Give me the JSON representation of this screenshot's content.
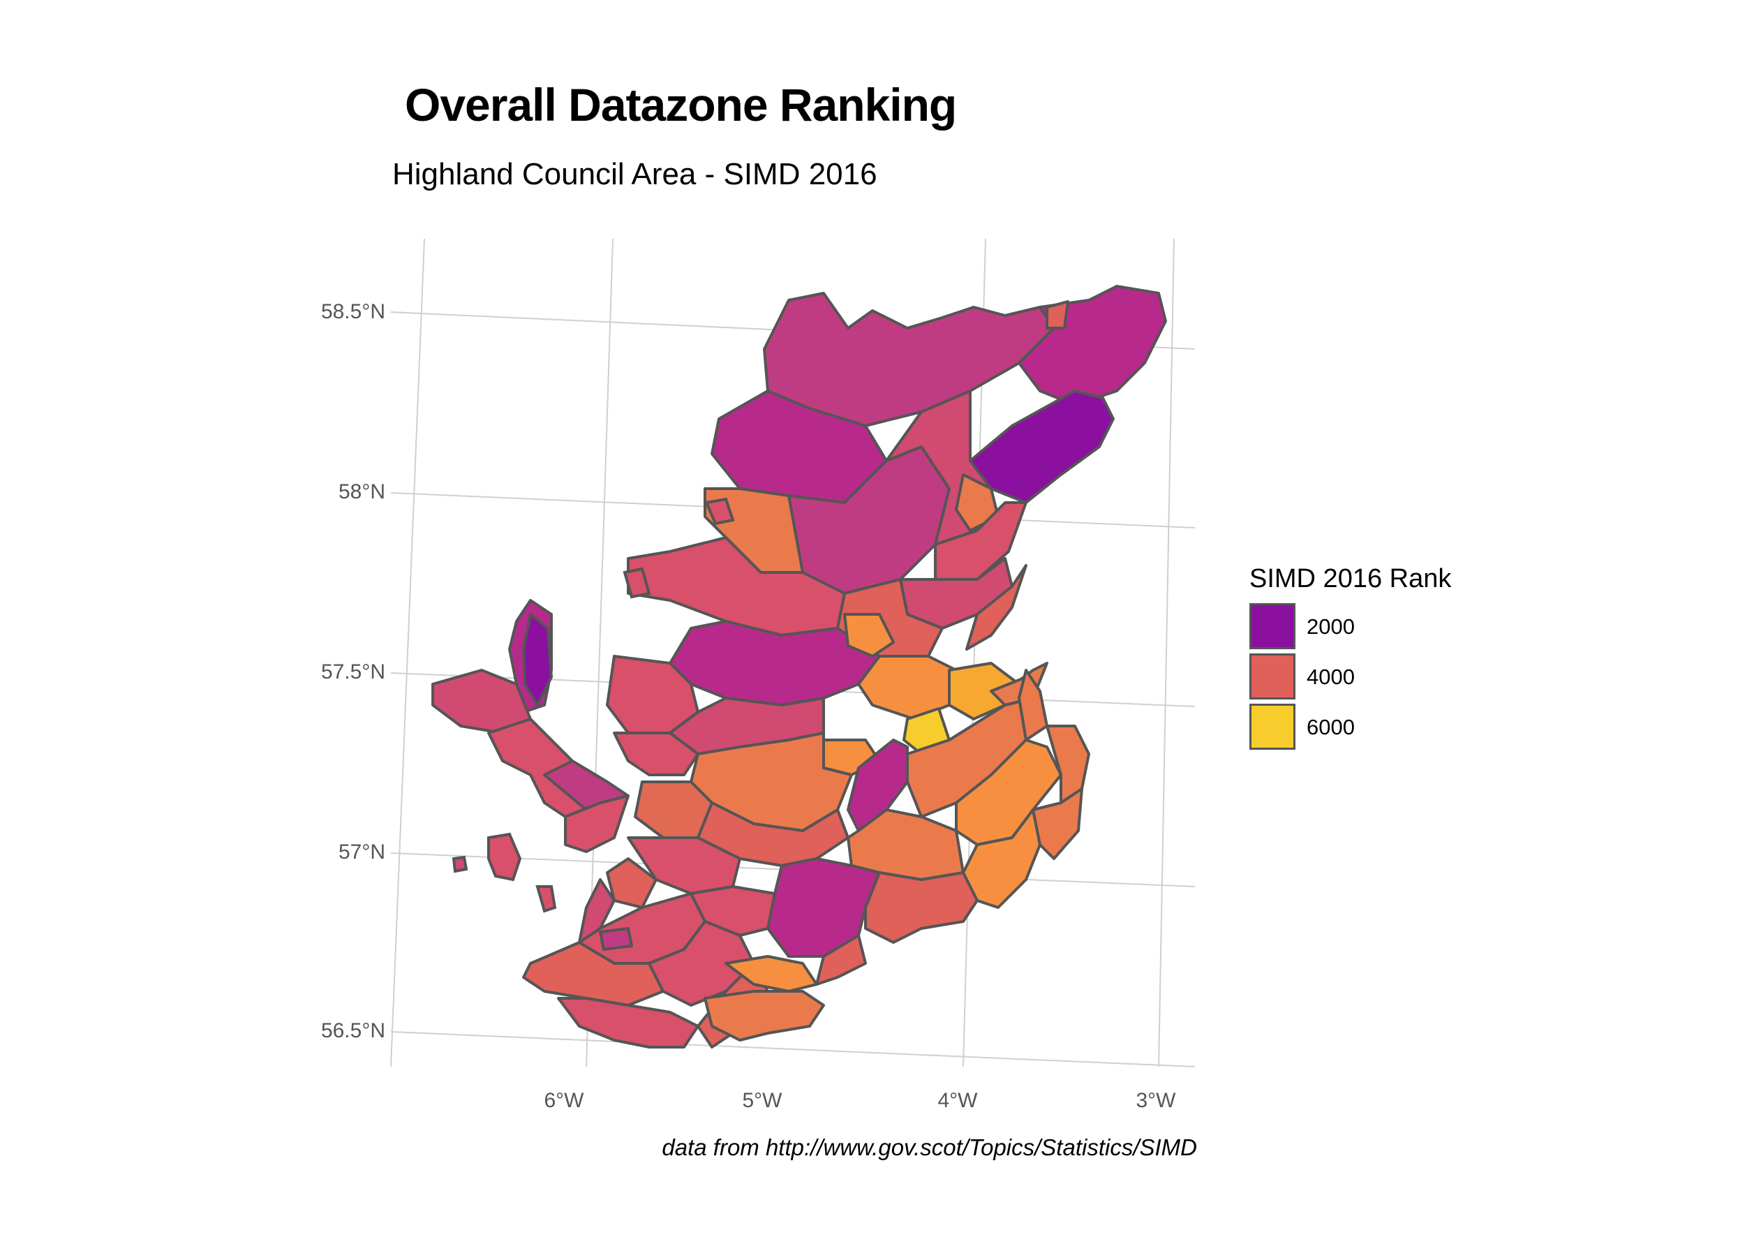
{
  "title": "Overall Datazone Ranking",
  "subtitle": "Highland Council Area - SIMD 2016",
  "caption": "data from http://www.gov.scot/Topics/Statistics/SIMD",
  "axes": {
    "latitude_labels": [
      "58.5°N",
      "58°N",
      "57.5°N",
      "57°N",
      "56.5°N"
    ],
    "longitude_labels": [
      "6°W",
      "5°W",
      "4°W",
      "3°W"
    ]
  },
  "legend": {
    "title": "SIMD 2016 Rank",
    "items": [
      {
        "label": "2000",
        "color": "#8b10a0"
      },
      {
        "label": "4000",
        "color": "#e0605a"
      },
      {
        "label": "6000",
        "color": "#f6cd2c"
      }
    ]
  },
  "colors": {
    "outline": "#555555",
    "graticule": "#c8c8c8",
    "rank_low": "#8b10a0",
    "rank_mid_low": "#b72a8c",
    "rank_mid": "#d8506a",
    "rank_mid_high": "#ea7a4c",
    "rank_high": "#f6cd2c"
  }
}
